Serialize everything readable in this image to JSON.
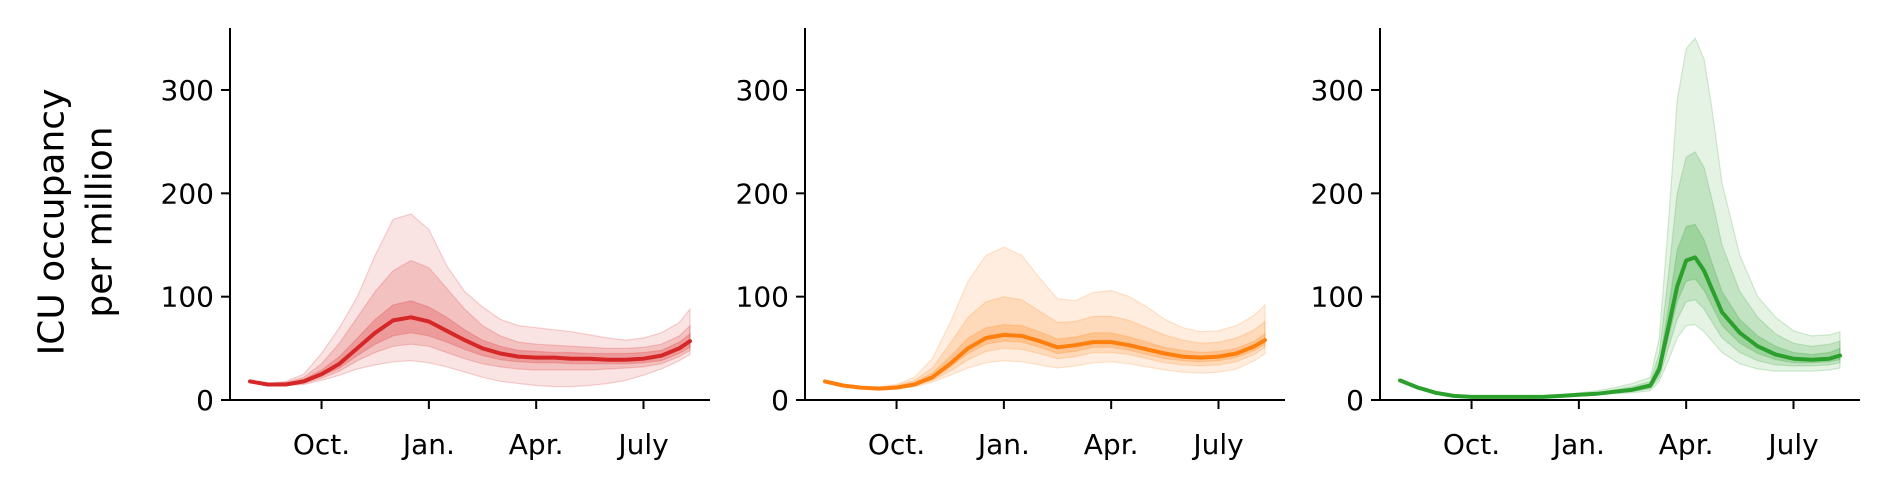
{
  "figure": {
    "ylabel_lines": [
      "ICU occupancy",
      "per million"
    ]
  },
  "chart_data": [
    {
      "type": "area",
      "color": "#d62728",
      "ylim": [
        0,
        360
      ],
      "yticks": [
        0,
        100,
        200,
        300
      ],
      "xlim": [
        0,
        12.3
      ],
      "xticks": [
        {
          "x": 2,
          "label": "Oct."
        },
        {
          "x": 5,
          "label": "Jan."
        },
        {
          "x": 8,
          "label": "Apr."
        },
        {
          "x": 11,
          "label": "July"
        }
      ],
      "x": [
        0.0,
        0.5,
        1.0,
        1.5,
        2.0,
        2.5,
        3.0,
        3.5,
        4.0,
        4.5,
        5.0,
        5.5,
        6.0,
        6.5,
        7.0,
        7.5,
        8.0,
        8.5,
        9.0,
        9.5,
        10.0,
        10.5,
        11.0,
        11.5,
        12.0,
        12.3
      ],
      "median": [
        18,
        15,
        15,
        18,
        25,
        35,
        50,
        65,
        77,
        80,
        76,
        67,
        58,
        50,
        45,
        42,
        41,
        41,
        40,
        40,
        39,
        39,
        40,
        43,
        50,
        57
      ],
      "bands": [
        {
          "lower": [
            18,
            15,
            14,
            15,
            19,
            24,
            30,
            34,
            37,
            38,
            36,
            32,
            27,
            22,
            18,
            16,
            14,
            13,
            13,
            14,
            16,
            19,
            24,
            30,
            38,
            44
          ],
          "upper": [
            18,
            16,
            18,
            25,
            45,
            70,
            100,
            140,
            175,
            180,
            165,
            130,
            105,
            90,
            78,
            72,
            70,
            68,
            66,
            63,
            60,
            58,
            60,
            65,
            75,
            88
          ]
        },
        {
          "lower": [
            18,
            15,
            14,
            16,
            21,
            28,
            38,
            46,
            52,
            54,
            52,
            46,
            40,
            35,
            32,
            30,
            29,
            29,
            29,
            29,
            30,
            31,
            32,
            35,
            42,
            48
          ],
          "upper": [
            18,
            16,
            17,
            22,
            35,
            55,
            80,
            105,
            125,
            135,
            128,
            108,
            88,
            72,
            62,
            56,
            54,
            53,
            52,
            51,
            50,
            50,
            51,
            54,
            62,
            72
          ]
        },
        {
          "lower": [
            18,
            15,
            14,
            17,
            23,
            31,
            43,
            54,
            62,
            65,
            62,
            56,
            49,
            43,
            39,
            37,
            36,
            36,
            35,
            35,
            35,
            35,
            36,
            38,
            45,
            51
          ],
          "upper": [
            18,
            16,
            16,
            20,
            29,
            42,
            60,
            78,
            92,
            96,
            90,
            80,
            68,
            58,
            52,
            48,
            47,
            46,
            46,
            45,
            45,
            45,
            46,
            48,
            56,
            64
          ]
        }
      ]
    },
    {
      "type": "area",
      "color": "#ff7f0e",
      "ylim": [
        0,
        360
      ],
      "yticks": [
        0,
        100,
        200,
        300
      ],
      "xlim": [
        0,
        12.3
      ],
      "xticks": [
        {
          "x": 2,
          "label": "Oct."
        },
        {
          "x": 5,
          "label": "Jan."
        },
        {
          "x": 8,
          "label": "Apr."
        },
        {
          "x": 11,
          "label": "July"
        }
      ],
      "x": [
        0.0,
        0.5,
        1.0,
        1.5,
        2.0,
        2.5,
        3.0,
        3.5,
        4.0,
        4.5,
        5.0,
        5.5,
        6.0,
        6.5,
        7.0,
        7.5,
        8.0,
        8.5,
        9.0,
        9.5,
        10.0,
        10.5,
        11.0,
        11.5,
        12.0,
        12.3
      ],
      "median": [
        18,
        14,
        12,
        11,
        12,
        15,
        22,
        35,
        50,
        60,
        63,
        62,
        57,
        51,
        53,
        56,
        56,
        53,
        49,
        45,
        42,
        41,
        42,
        45,
        52,
        58
      ],
      "bands": [
        {
          "lower": [
            18,
            14,
            11,
            10,
            11,
            13,
            17,
            24,
            31,
            36,
            38,
            37,
            34,
            31,
            33,
            36,
            37,
            35,
            32,
            29,
            27,
            26,
            27,
            30,
            38,
            45
          ],
          "upper": [
            18,
            14,
            13,
            13,
            15,
            22,
            40,
            75,
            115,
            140,
            148,
            140,
            118,
            98,
            96,
            104,
            106,
            100,
            90,
            78,
            70,
            66,
            67,
            72,
            82,
            92
          ]
        },
        {
          "lower": [
            18,
            14,
            11,
            10,
            11,
            14,
            19,
            28,
            39,
            47,
            50,
            49,
            45,
            40,
            42,
            46,
            46,
            44,
            40,
            36,
            34,
            33,
            34,
            37,
            44,
            51
          ],
          "upper": [
            18,
            14,
            13,
            12,
            14,
            19,
            31,
            55,
            80,
            95,
            100,
            97,
            86,
            75,
            76,
            81,
            81,
            77,
            70,
            63,
            58,
            55,
            56,
            60,
            68,
            76
          ]
        },
        {
          "lower": [
            18,
            14,
            12,
            11,
            12,
            14,
            20,
            32,
            45,
            54,
            57,
            56,
            51,
            45,
            47,
            51,
            51,
            48,
            44,
            40,
            38,
            37,
            38,
            41,
            48,
            54
          ],
          "upper": [
            18,
            14,
            12,
            12,
            13,
            17,
            26,
            42,
            60,
            70,
            73,
            72,
            66,
            59,
            61,
            65,
            65,
            61,
            56,
            51,
            48,
            46,
            47,
            50,
            57,
            64
          ]
        }
      ]
    },
    {
      "type": "area",
      "color": "#2ca02c",
      "ylim": [
        0,
        360
      ],
      "yticks": [
        0,
        100,
        200,
        300
      ],
      "xlim": [
        0,
        12.3
      ],
      "xticks": [
        {
          "x": 2,
          "label": "Oct."
        },
        {
          "x": 5,
          "label": "Jan."
        },
        {
          "x": 8,
          "label": "Apr."
        },
        {
          "x": 11,
          "label": "July"
        }
      ],
      "x": [
        0.0,
        0.5,
        1.0,
        1.5,
        2.0,
        2.5,
        3.0,
        3.5,
        4.0,
        4.5,
        5.0,
        5.5,
        6.0,
        6.5,
        7.0,
        7.25,
        7.5,
        7.75,
        8.0,
        8.25,
        8.5,
        8.75,
        9.0,
        9.5,
        10.0,
        10.5,
        11.0,
        11.5,
        12.0,
        12.3
      ],
      "median": [
        19,
        12,
        7,
        4,
        3,
        3,
        3,
        3,
        3,
        4,
        5,
        6,
        8,
        10,
        14,
        30,
        70,
        110,
        135,
        138,
        125,
        105,
        85,
        65,
        52,
        44,
        40,
        39,
        40,
        43
      ],
      "bands": [
        {
          "lower": [
            19,
            12,
            7,
            4,
            3,
            3,
            3,
            3,
            3,
            3,
            4,
            5,
            6,
            7,
            9,
            18,
            38,
            60,
            72,
            73,
            66,
            56,
            46,
            35,
            30,
            28,
            28,
            28,
            29,
            31
          ],
          "upper": [
            19,
            12,
            7,
            4,
            3,
            3,
            3,
            3,
            3,
            5,
            7,
            9,
            12,
            16,
            22,
            60,
            170,
            290,
            340,
            350,
            330,
            275,
            210,
            140,
            100,
            80,
            67,
            62,
            63,
            66
          ]
        },
        {
          "lower": [
            19,
            12,
            7,
            4,
            3,
            3,
            3,
            3,
            3,
            3,
            4,
            5,
            7,
            8,
            11,
            22,
            50,
            78,
            95,
            97,
            88,
            74,
            60,
            46,
            38,
            34,
            33,
            33,
            34,
            36
          ],
          "upper": [
            19,
            12,
            7,
            4,
            3,
            3,
            3,
            3,
            3,
            4,
            6,
            7,
            10,
            13,
            18,
            45,
            120,
            200,
            235,
            240,
            225,
            190,
            150,
            105,
            80,
            64,
            55,
            52,
            54,
            57
          ]
        },
        {
          "lower": [
            19,
            12,
            7,
            4,
            3,
            3,
            3,
            3,
            3,
            4,
            5,
            6,
            7,
            9,
            12,
            26,
            60,
            95,
            115,
            117,
            106,
            89,
            72,
            55,
            45,
            39,
            36,
            36,
            37,
            39
          ],
          "upper": [
            19,
            12,
            7,
            4,
            3,
            3,
            3,
            3,
            3,
            4,
            5,
            7,
            9,
            11,
            16,
            36,
            88,
            145,
            168,
            170,
            155,
            130,
            105,
            78,
            62,
            52,
            46,
            44,
            46,
            50
          ]
        }
      ]
    }
  ]
}
